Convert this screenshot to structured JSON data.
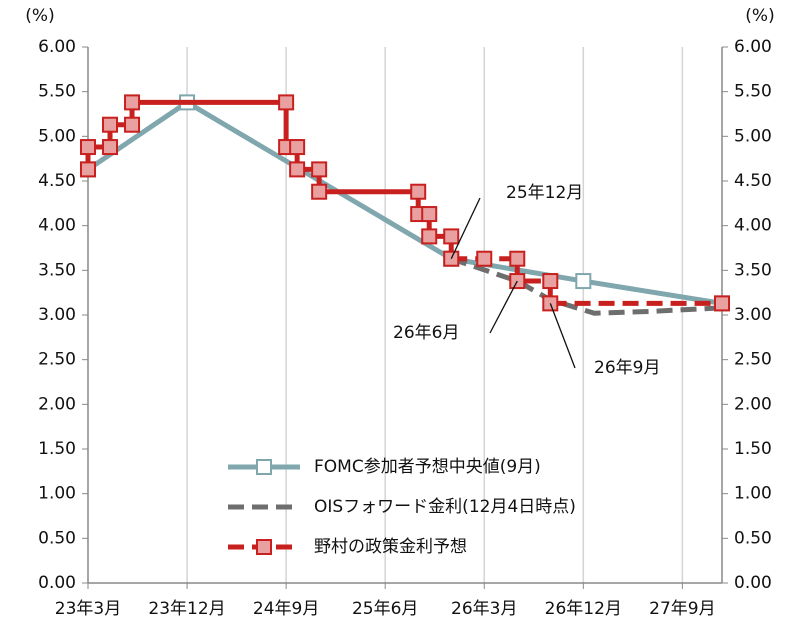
{
  "chart_data": {
    "type": "line",
    "y_unit_left": "(%)",
    "y_unit_right": "(%)",
    "xlim": [
      0,
      57.6
    ],
    "xticks": [
      {
        "value": 0,
        "label": "23年3月"
      },
      {
        "value": 9,
        "label": "23年12月"
      },
      {
        "value": 18,
        "label": "24年9月"
      },
      {
        "value": 27,
        "label": "25年6月"
      },
      {
        "value": 36,
        "label": "26年3月"
      },
      {
        "value": 45,
        "label": "26年12月"
      },
      {
        "value": 54,
        "label": "27年9月"
      }
    ],
    "ylim": [
      0,
      6
    ],
    "yticks": [
      {
        "value": 0,
        "label": "0.00"
      },
      {
        "value": 0.5,
        "label": "0.50"
      },
      {
        "value": 1,
        "label": "1.00"
      },
      {
        "value": 1.5,
        "label": "1.50"
      },
      {
        "value": 2,
        "label": "2.00"
      },
      {
        "value": 2.5,
        "label": "2.50"
      },
      {
        "value": 3,
        "label": "3.00"
      },
      {
        "value": 3.5,
        "label": "3.50"
      },
      {
        "value": 4,
        "label": "4.00"
      },
      {
        "value": 4.5,
        "label": "4.50"
      },
      {
        "value": 5,
        "label": "5.00"
      },
      {
        "value": 5.5,
        "label": "5.50"
      },
      {
        "value": 6,
        "label": "6.00"
      }
    ],
    "grid": "x",
    "series": [
      {
        "name": "FOMC参加者予想中央値(9月)",
        "color": "#7fa7ad",
        "style": "solid",
        "marker": "hollow-square",
        "x": [
          0,
          9,
          33,
          45,
          57.6
        ],
        "values": [
          4.63,
          5.38,
          3.63,
          3.38,
          3.13
        ]
      },
      {
        "name": "OISフォワード金利(12月4日時点)",
        "color": "#6e6e6e",
        "style": "dashed",
        "marker": "none",
        "x": [
          33,
          39,
          42,
          46,
          51,
          57.6
        ],
        "values": [
          3.63,
          3.38,
          3.17,
          3.02,
          3.04,
          3.08
        ]
      },
      {
        "name": "野村の政策金利予想",
        "color": "#c8201f",
        "style": "solid-then-dashed",
        "dash_after": 33,
        "marker": "filled-square",
        "x": [
          0,
          0,
          2,
          2,
          4,
          4,
          18,
          18,
          19,
          19,
          21,
          21,
          30,
          30,
          31,
          31,
          33,
          33,
          36,
          39,
          39,
          42,
          42,
          57.6
        ],
        "values": [
          4.63,
          4.88,
          4.88,
          5.13,
          5.13,
          5.38,
          5.38,
          4.88,
          4.88,
          4.63,
          4.63,
          4.38,
          4.38,
          4.13,
          4.13,
          3.88,
          3.88,
          3.63,
          3.63,
          3.63,
          3.38,
          3.38,
          3.13,
          3.13
        ]
      }
    ],
    "annotations": [
      {
        "text": "25年12月",
        "x": 33,
        "y": 3.63
      },
      {
        "text": "26年6月",
        "x": 39,
        "y": 3.38
      },
      {
        "text": "26年9月",
        "x": 42,
        "y": 3.13
      }
    ]
  }
}
